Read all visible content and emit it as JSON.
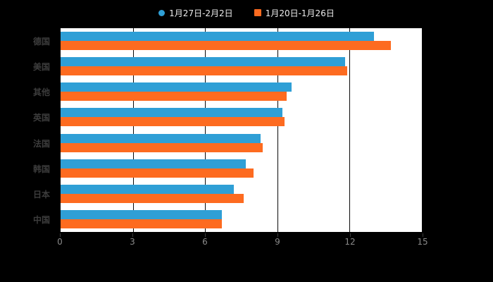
{
  "chart_data": {
    "type": "bar",
    "orientation": "horizontal",
    "title": "",
    "xlabel": "",
    "ylabel": "",
    "categories": [
      "德国",
      "美国",
      "其他",
      "英国",
      "法国",
      "韩国",
      "日本",
      "中国"
    ],
    "series": [
      {
        "name": "1月27日-2月2日",
        "marker": "circle",
        "color": "#2f9fd6",
        "values": [
          13.0,
          11.8,
          9.6,
          9.2,
          8.3,
          7.7,
          7.2,
          6.7
        ]
      },
      {
        "name": "1月20日-1月26日",
        "marker": "square",
        "color": "#fd6b20",
        "values": [
          13.7,
          11.9,
          9.4,
          9.3,
          8.4,
          8.0,
          7.6,
          6.7
        ]
      }
    ],
    "xlim": [
      0,
      15
    ],
    "x_ticks": [
      "0",
      "3",
      "6",
      "9",
      "12",
      "15"
    ],
    "grid": true,
    "legend_position": "top"
  },
  "theme": {
    "page_background": "#000000",
    "plot_background": "#ffffff",
    "grid_color": "#0a0a0a",
    "axis_tick_label_color": "#8a8a8a",
    "category_label_color": "#3d3d3d",
    "legend_text_color": "#ededed",
    "series_blue": "#2f9fd6",
    "series_orange": "#fd6b20"
  }
}
